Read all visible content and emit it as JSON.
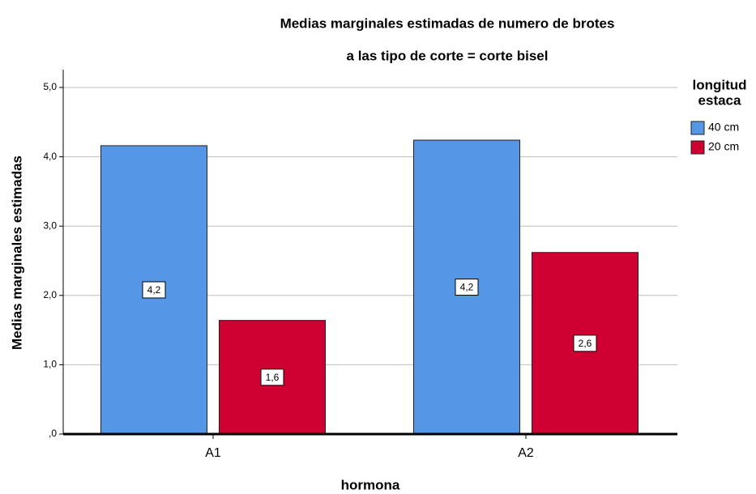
{
  "chart_data": {
    "type": "bar",
    "title": "Medias marginales estimadas de numero de brotes",
    "subtitle": "a las tipo de corte = corte bisel",
    "x_label": "hormona",
    "y_label": "Medias marginales estimadas",
    "legend_title": [
      "longitud",
      "estaca"
    ],
    "legend_position": "right",
    "categories": [
      "A1",
      "A2"
    ],
    "series": [
      {
        "name": "40 cm",
        "color": "#5596e6",
        "values": [
          4.16,
          4.24
        ],
        "value_labels": [
          "4,2",
          "4,2"
        ]
      },
      {
        "name": "20 cm",
        "color": "#cf0032",
        "values": [
          1.64,
          2.62
        ],
        "value_labels": [
          "1,6",
          "2,6"
        ]
      }
    ],
    "ylim": [
      0,
      5
    ],
    "yticks": [
      {
        "value": 0,
        "label": ",0"
      },
      {
        "value": 1,
        "label": "1,0"
      },
      {
        "value": 2,
        "label": "2,0"
      },
      {
        "value": 3,
        "label": "3,0"
      },
      {
        "value": 4,
        "label": "4,0"
      },
      {
        "value": 5,
        "label": "5,0"
      }
    ],
    "grid": true
  }
}
